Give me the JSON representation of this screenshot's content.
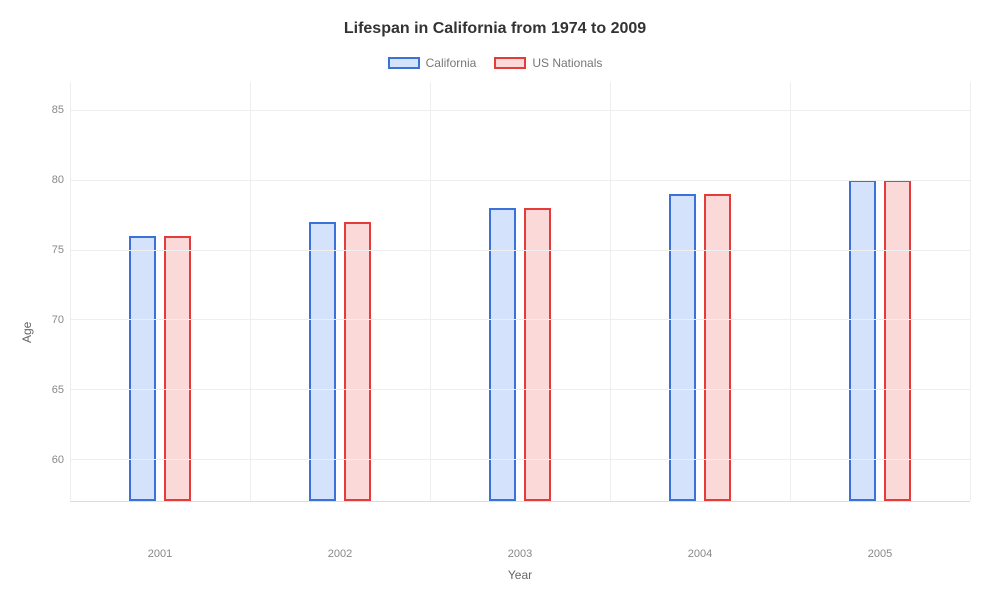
{
  "chart": {
    "type": "bar",
    "title": "Lifespan in California from 1974 to 2009",
    "title_fontsize": 16,
    "title_color": "#333333",
    "xlabel": "Year",
    "ylabel": "Age",
    "label_fontsize": 12,
    "label_color": "#666666",
    "categories": [
      "2001",
      "2002",
      "2003",
      "2004",
      "2005"
    ],
    "ylim": [
      57,
      87
    ],
    "yticks": [
      60,
      65,
      70,
      75,
      80,
      85
    ],
    "tick_fontsize": 11,
    "tick_color": "#888888",
    "grid_color": "#eeeeee",
    "background_color": "#ffffff",
    "bar_width_ratio": 0.15,
    "bar_gap_ratio": 0.03,
    "series": [
      {
        "name": "California",
        "fill_color": "#d4e2fb",
        "border_color": "#3b72d9",
        "values": [
          76,
          77,
          78,
          79,
          80
        ]
      },
      {
        "name": "US Nationals",
        "fill_color": "#fbd9d9",
        "border_color": "#e63b3b",
        "values": [
          76,
          77,
          78,
          79,
          80
        ]
      }
    ],
    "legend": {
      "position": "top-center",
      "swatch_width": 32,
      "swatch_height": 12,
      "font_color": "#777777",
      "font_size": 12
    }
  }
}
